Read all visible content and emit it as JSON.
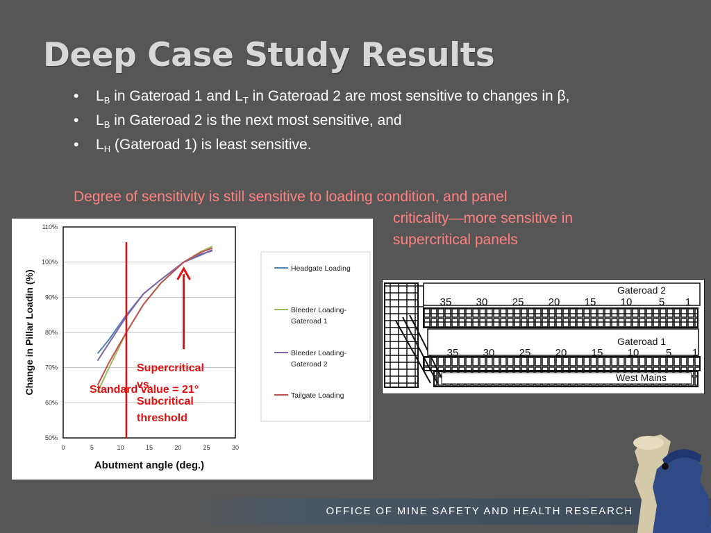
{
  "slide": {
    "title": "Deep Case Study Results",
    "bullets": [
      {
        "s1": "L",
        "sub1": "B",
        "s2": " in Gateroad 1 and L",
        "sub2": "T",
        "s3": " in Gateroad 2 are most sensitive to changes in β,"
      },
      {
        "s1": "L",
        "sub1": "B",
        "s2": " in Gateroad 2 is the next most sensitive, and"
      },
      {
        "s1": "L",
        "sub1": "H",
        "s2": " (Gateroad 1) is least sensitive."
      }
    ],
    "sensitivity_line1": "Degree of sensitivity is still sensitive to loading condition, and panel",
    "sensitivity_line2": "criticality—more sensitive in",
    "sensitivity_line3": "supercritical panels",
    "footer": "OFFICE OF MINE SAFETY AND HEALTH RESEARCH"
  },
  "chart_data": {
    "type": "line",
    "xlabel": "Abutment angle (deg.)",
    "ylabel": "Change in Pillar Loadin (%)",
    "xlim": [
      0,
      30
    ],
    "ylim": [
      50,
      110
    ],
    "x_ticks": [
      "0",
      "5",
      "10",
      "15",
      "20",
      "25",
      "30"
    ],
    "y_ticks": [
      "50%",
      "60%",
      "70%",
      "80%",
      "90%",
      "100%",
      "110%"
    ],
    "grid": "horizontal",
    "legend_position": "right",
    "series": [
      {
        "name": "Headgate Loading",
        "color": "#4f81bd",
        "points": [
          [
            6,
            74
          ],
          [
            8,
            78
          ],
          [
            11,
            85
          ],
          [
            14,
            91
          ],
          [
            17,
            95
          ],
          [
            21,
            100
          ],
          [
            24,
            102
          ],
          [
            26,
            103.5
          ]
        ]
      },
      {
        "name": "Bleeder Loading-Gateroad 1",
        "color": "#9bbb59",
        "points": [
          [
            6,
            63
          ],
          [
            8,
            70
          ],
          [
            11,
            80
          ],
          [
            14,
            88
          ],
          [
            17,
            94
          ],
          [
            21,
            100
          ],
          [
            24,
            103
          ],
          [
            26,
            104.5
          ]
        ]
      },
      {
        "name": "Bleeder Loading-Gateroad 2",
        "color": "#8064a2",
        "points": [
          [
            6,
            72
          ],
          [
            8,
            77
          ],
          [
            11,
            84.5
          ],
          [
            14,
            91
          ],
          [
            17,
            95
          ],
          [
            21,
            100
          ],
          [
            24,
            102.3
          ],
          [
            26,
            103.2
          ]
        ]
      },
      {
        "name": "Tailgate Loading",
        "color": "#c0504d",
        "points": [
          [
            6,
            65
          ],
          [
            8,
            71.5
          ],
          [
            11,
            80
          ],
          [
            14,
            88
          ],
          [
            17,
            94
          ],
          [
            21,
            100
          ],
          [
            24,
            102.8
          ],
          [
            26,
            104
          ]
        ]
      }
    ],
    "standard_line_x": 11,
    "annotations": {
      "standard": "Standard value = 21°",
      "threshold": "Supercritical vs. Subcritical threshold"
    }
  },
  "diagram": {
    "gateroad2_label": "Gateroad 2",
    "gateroad1_label": "Gateroad 1",
    "west_mains_label": "West Mains",
    "row_numbers_top": [
      "35",
      "30",
      "25",
      "20",
      "15",
      "10",
      "5",
      "1"
    ],
    "row_numbers_bottom": [
      "35",
      "30",
      "25",
      "20",
      "15",
      "10",
      "5",
      "1"
    ]
  }
}
